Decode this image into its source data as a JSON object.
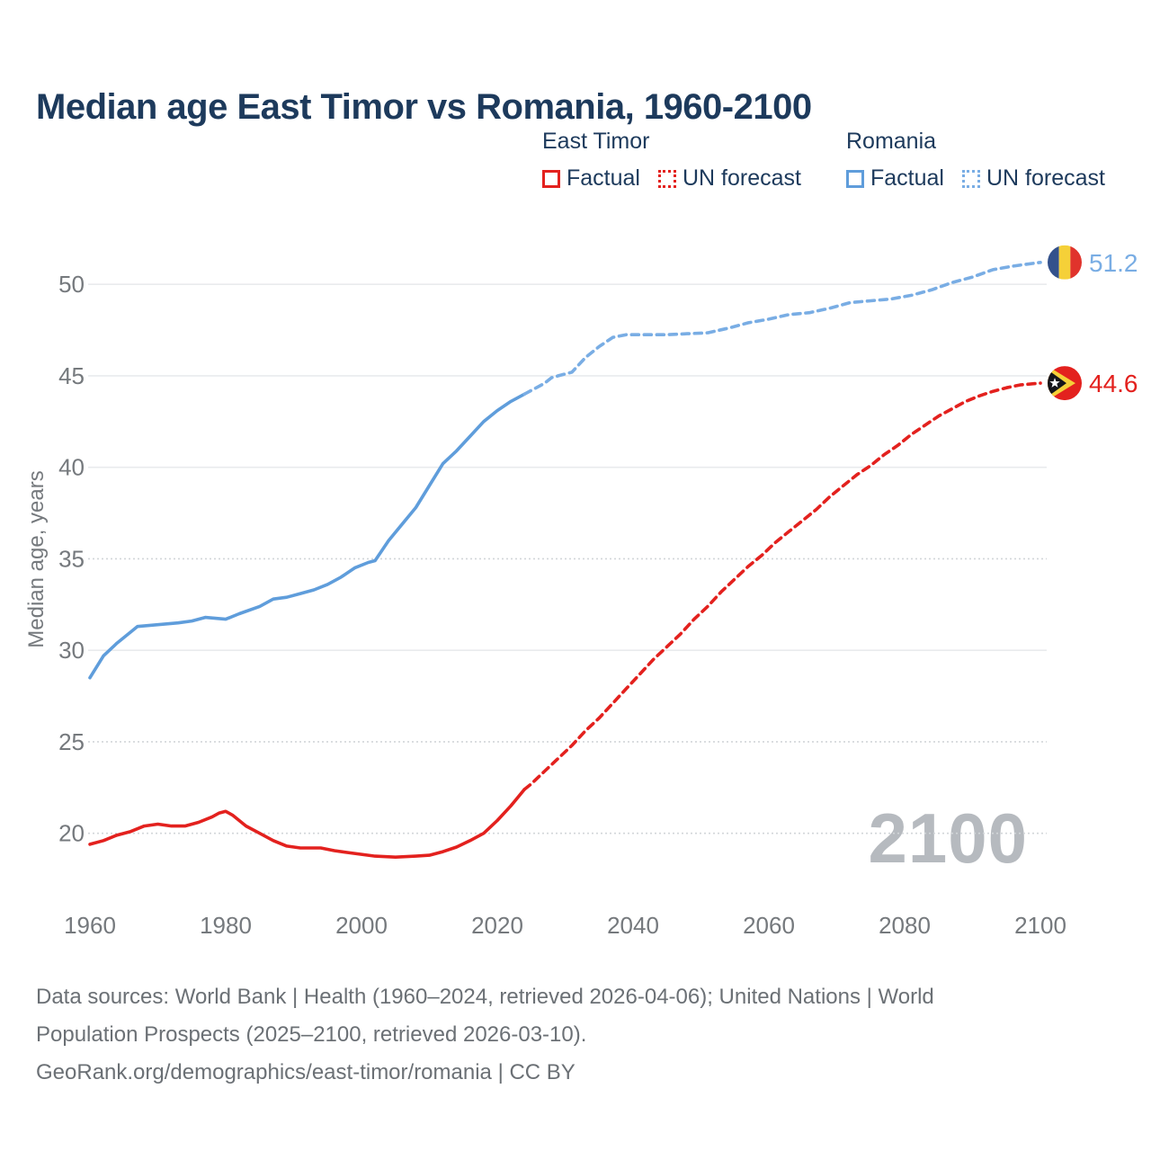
{
  "title": "Median age East Timor vs Romania, 1960-2100",
  "legend": {
    "groups": [
      {
        "label": "East Timor",
        "items": [
          {
            "label": "Factual",
            "style": "solid",
            "color_key": "east_timor_red"
          },
          {
            "label": "UN forecast",
            "style": "dotted",
            "color_key": "east_timor_red"
          }
        ]
      },
      {
        "label": "Romania",
        "items": [
          {
            "label": "Factual",
            "style": "solid",
            "color_key": "romania_blue"
          },
          {
            "label": "UN forecast",
            "style": "dotted",
            "color_key": "romania_blue_light"
          }
        ]
      }
    ]
  },
  "watermark": "2100",
  "footer": {
    "lines": [
      "Data sources: World Bank | Health (1960–2024, retrieved 2026-04-06); United Nations | World",
      "Population Prospects (2025–2100, retrieved 2026-03-10).",
      "GeoRank.org/demographics/east-timor/romania | CC BY"
    ]
  },
  "colors": {
    "title_navy": "#1d3a5c",
    "axis_gray": "#75797d",
    "footer_gray": "#6b7075",
    "grid_gray": "#e9ebed",
    "grid_dot_gray": "#d2d6d9",
    "watermark_gray": "#b6babf",
    "east_timor_red": "#e3211e",
    "romania_blue": "#5f9ddb",
    "romania_blue_light": "#79ade4"
  },
  "flags": {
    "romania": {
      "blue": "#33518c",
      "yellow": "#f5d038",
      "red": "#e0332c"
    },
    "east_timor": {
      "red": "#e3211e",
      "black": "#14151a",
      "yellow": "#f5d038",
      "white": "#ffffff"
    }
  },
  "chart_data": {
    "type": "line",
    "title": "Median age East Timor vs Romania, 1960-2100",
    "xlabel": "",
    "ylabel": "Median age, years",
    "xlim": [
      1960,
      2100
    ],
    "ylim": [
      18,
      52
    ],
    "grid": true,
    "x_ticks": [
      1960,
      1980,
      2000,
      2020,
      2040,
      2060,
      2080,
      2100
    ],
    "y_ticks": [
      20,
      25,
      30,
      35,
      40,
      45,
      50
    ],
    "dotted_gridline_ticks": [
      20,
      25,
      35
    ],
    "series": [
      {
        "name": "Romania factual",
        "id": "romania-factual-line",
        "color_key": "romania_blue",
        "style": "solid",
        "points": [
          [
            1960,
            28.5
          ],
          [
            1962,
            29.7
          ],
          [
            1964,
            30.4
          ],
          [
            1966,
            31.0
          ],
          [
            1967,
            31.3
          ],
          [
            1970,
            31.4
          ],
          [
            1973,
            31.5
          ],
          [
            1975,
            31.6
          ],
          [
            1977,
            31.8
          ],
          [
            1980,
            31.7
          ],
          [
            1982,
            32.0
          ],
          [
            1985,
            32.4
          ],
          [
            1987,
            32.8
          ],
          [
            1989,
            32.9
          ],
          [
            1991,
            33.1
          ],
          [
            1993,
            33.3
          ],
          [
            1995,
            33.6
          ],
          [
            1997,
            34.0
          ],
          [
            1999,
            34.5
          ],
          [
            2001,
            34.8
          ],
          [
            2002,
            34.9
          ],
          [
            2004,
            36.0
          ],
          [
            2006,
            36.9
          ],
          [
            2008,
            37.8
          ],
          [
            2010,
            39.0
          ],
          [
            2012,
            40.2
          ],
          [
            2014,
            40.9
          ],
          [
            2016,
            41.7
          ],
          [
            2018,
            42.5
          ],
          [
            2020,
            43.1
          ],
          [
            2022,
            43.6
          ],
          [
            2024,
            44.0
          ]
        ]
      },
      {
        "name": "Romania UN forecast",
        "id": "romania-forecast-line",
        "color_key": "romania_blue_light",
        "style": "dashed",
        "end_label": "51.2",
        "flag": "romania",
        "points": [
          [
            2024,
            44.0
          ],
          [
            2025,
            44.2
          ],
          [
            2026,
            44.4
          ],
          [
            2027,
            44.6
          ],
          [
            2028,
            44.9
          ],
          [
            2029,
            45.0
          ],
          [
            2031,
            45.2
          ],
          [
            2033,
            46.0
          ],
          [
            2035,
            46.6
          ],
          [
            2037,
            47.1
          ],
          [
            2039,
            47.25
          ],
          [
            2042,
            47.25
          ],
          [
            2045,
            47.25
          ],
          [
            2048,
            47.3
          ],
          [
            2051,
            47.35
          ],
          [
            2054,
            47.6
          ],
          [
            2057,
            47.9
          ],
          [
            2060,
            48.1
          ],
          [
            2063,
            48.35
          ],
          [
            2066,
            48.45
          ],
          [
            2069,
            48.7
          ],
          [
            2072,
            49.0
          ],
          [
            2075,
            49.1
          ],
          [
            2078,
            49.2
          ],
          [
            2081,
            49.4
          ],
          [
            2084,
            49.7
          ],
          [
            2087,
            50.1
          ],
          [
            2090,
            50.4
          ],
          [
            2093,
            50.8
          ],
          [
            2096,
            51.0
          ],
          [
            2098,
            51.1
          ],
          [
            2100,
            51.2
          ]
        ]
      },
      {
        "name": "East Timor factual",
        "id": "east-timor-factual-line",
        "color_key": "east_timor_red",
        "style": "solid",
        "points": [
          [
            1960,
            19.4
          ],
          [
            1962,
            19.6
          ],
          [
            1964,
            19.9
          ],
          [
            1966,
            20.1
          ],
          [
            1968,
            20.4
          ],
          [
            1970,
            20.5
          ],
          [
            1972,
            20.4
          ],
          [
            1974,
            20.4
          ],
          [
            1976,
            20.6
          ],
          [
            1978,
            20.9
          ],
          [
            1979,
            21.1
          ],
          [
            1980,
            21.2
          ],
          [
            1981,
            21.0
          ],
          [
            1983,
            20.4
          ],
          [
            1985,
            20.0
          ],
          [
            1987,
            19.6
          ],
          [
            1989,
            19.3
          ],
          [
            1991,
            19.2
          ],
          [
            1994,
            19.2
          ],
          [
            1996,
            19.05
          ],
          [
            1998,
            18.95
          ],
          [
            2000,
            18.85
          ],
          [
            2002,
            18.75
          ],
          [
            2005,
            18.7
          ],
          [
            2008,
            18.75
          ],
          [
            2010,
            18.8
          ],
          [
            2012,
            19.0
          ],
          [
            2014,
            19.25
          ],
          [
            2016,
            19.6
          ],
          [
            2018,
            20.0
          ],
          [
            2020,
            20.7
          ],
          [
            2022,
            21.5
          ],
          [
            2024,
            22.4
          ]
        ]
      },
      {
        "name": "East Timor UN forecast",
        "id": "east-timor-forecast-line",
        "color_key": "east_timor_red",
        "style": "dashed",
        "end_label": "44.6",
        "flag": "east_timor",
        "points": [
          [
            2024,
            22.4
          ],
          [
            2025,
            22.7
          ],
          [
            2027,
            23.4
          ],
          [
            2029,
            24.1
          ],
          [
            2031,
            24.8
          ],
          [
            2033,
            25.6
          ],
          [
            2035,
            26.3
          ],
          [
            2037,
            27.1
          ],
          [
            2039,
            27.9
          ],
          [
            2041,
            28.7
          ],
          [
            2043,
            29.5
          ],
          [
            2045,
            30.2
          ],
          [
            2047,
            30.9
          ],
          [
            2049,
            31.7
          ],
          [
            2051,
            32.4
          ],
          [
            2053,
            33.2
          ],
          [
            2055,
            33.9
          ],
          [
            2057,
            34.6
          ],
          [
            2059,
            35.2
          ],
          [
            2061,
            35.9
          ],
          [
            2063,
            36.5
          ],
          [
            2065,
            37.1
          ],
          [
            2067,
            37.7
          ],
          [
            2069,
            38.4
          ],
          [
            2071,
            39.0
          ],
          [
            2073,
            39.6
          ],
          [
            2075,
            40.1
          ],
          [
            2077,
            40.7
          ],
          [
            2079,
            41.2
          ],
          [
            2081,
            41.8
          ],
          [
            2083,
            42.3
          ],
          [
            2085,
            42.8
          ],
          [
            2087,
            43.2
          ],
          [
            2089,
            43.6
          ],
          [
            2091,
            43.9
          ],
          [
            2093,
            44.15
          ],
          [
            2095,
            44.35
          ],
          [
            2097,
            44.5
          ],
          [
            2099,
            44.57
          ],
          [
            2100,
            44.6
          ]
        ]
      }
    ]
  }
}
